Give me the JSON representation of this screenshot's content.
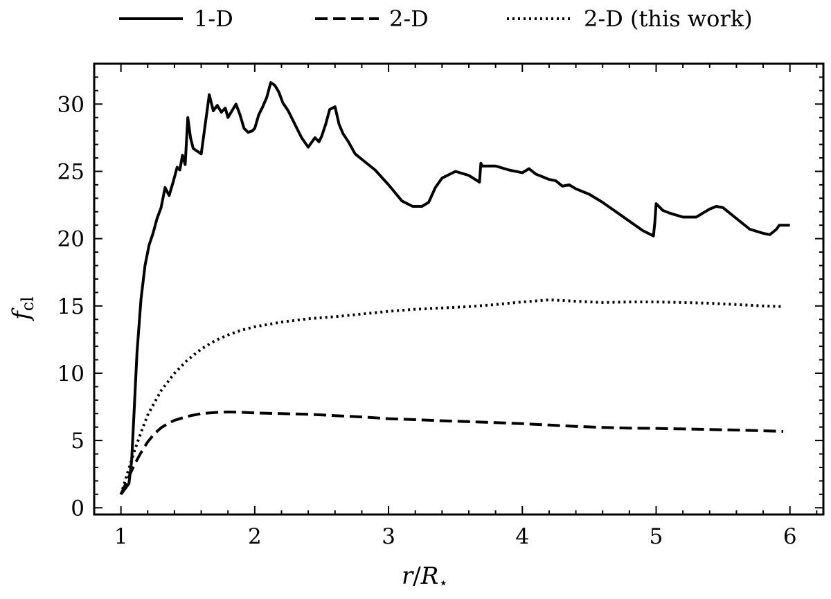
{
  "chart_data": {
    "type": "line",
    "xlabel": "r/R⋆",
    "ylabel": "f_cl",
    "xlim": [
      0.8,
      6.25
    ],
    "ylim": [
      -0.5,
      33
    ],
    "xticks": [
      1,
      2,
      3,
      4,
      5,
      6
    ],
    "yticks": [
      0,
      5,
      10,
      15,
      20,
      25,
      30
    ],
    "xtick_labels": [
      "1",
      "2",
      "3",
      "4",
      "5",
      "6"
    ],
    "ytick_labels": [
      "0",
      "5",
      "10",
      "15",
      "20",
      "25",
      "30"
    ],
    "grid": false,
    "legend_position": "top, outside plot",
    "series": [
      {
        "name": "1-D",
        "style": "solid",
        "x": [
          1.0,
          1.03,
          1.06,
          1.08,
          1.1,
          1.12,
          1.15,
          1.18,
          1.21,
          1.24,
          1.27,
          1.3,
          1.33,
          1.36,
          1.39,
          1.42,
          1.44,
          1.46,
          1.48,
          1.5,
          1.52,
          1.54,
          1.57,
          1.6,
          1.63,
          1.66,
          1.69,
          1.72,
          1.75,
          1.78,
          1.8,
          1.83,
          1.86,
          1.89,
          1.92,
          1.95,
          1.98,
          2.0,
          2.03,
          2.06,
          2.09,
          2.12,
          2.15,
          2.18,
          2.21,
          2.25,
          2.3,
          2.35,
          2.4,
          2.45,
          2.48,
          2.5,
          2.53,
          2.56,
          2.6,
          2.63,
          2.66,
          2.7,
          2.75,
          2.8,
          2.9,
          3.0,
          3.1,
          3.18,
          3.25,
          3.3,
          3.35,
          3.4,
          3.5,
          3.6,
          3.68,
          3.69,
          3.7,
          3.8,
          3.9,
          4.0,
          4.05,
          4.1,
          4.2,
          4.25,
          4.3,
          4.35,
          4.4,
          4.5,
          4.6,
          4.7,
          4.8,
          4.9,
          4.98,
          4.99,
          5.0,
          5.05,
          5.1,
          5.2,
          5.3,
          5.4,
          5.45,
          5.5,
          5.6,
          5.7,
          5.8,
          5.85,
          5.9,
          5.92,
          6.0
        ],
        "y": [
          1.0,
          1.4,
          1.8,
          3.5,
          7.5,
          11.5,
          15.5,
          18.0,
          19.5,
          20.4,
          21.5,
          22.3,
          23.8,
          23.2,
          24.2,
          25.3,
          25.1,
          26.2,
          25.5,
          29.0,
          27.5,
          26.7,
          26.5,
          26.3,
          28.5,
          30.7,
          29.5,
          29.9,
          29.4,
          29.7,
          29.0,
          29.5,
          30.0,
          29.2,
          28.2,
          27.9,
          28.0,
          28.2,
          29.2,
          29.8,
          30.5,
          31.6,
          31.4,
          30.9,
          30.1,
          29.5,
          28.5,
          27.5,
          26.8,
          27.5,
          27.2,
          27.6,
          28.5,
          29.6,
          29.8,
          28.5,
          27.8,
          27.2,
          26.3,
          25.9,
          25.1,
          24.0,
          22.8,
          22.4,
          22.4,
          22.7,
          23.8,
          24.5,
          25.0,
          24.7,
          24.2,
          25.6,
          25.4,
          25.4,
          25.1,
          24.9,
          25.2,
          24.8,
          24.4,
          24.3,
          23.9,
          24.0,
          23.7,
          23.3,
          22.7,
          22.0,
          21.3,
          20.6,
          20.2,
          21.2,
          22.6,
          22.1,
          21.9,
          21.6,
          21.6,
          22.2,
          22.4,
          22.3,
          21.5,
          20.7,
          20.4,
          20.3,
          20.7,
          21.0,
          21.0
        ]
      },
      {
        "name": "2-D",
        "style": "dashed",
        "x": [
          1.0,
          1.05,
          1.1,
          1.15,
          1.2,
          1.25,
          1.3,
          1.35,
          1.4,
          1.5,
          1.6,
          1.7,
          1.8,
          1.9,
          2.0,
          2.2,
          2.4,
          2.6,
          2.8,
          3.0,
          3.2,
          3.4,
          3.6,
          3.8,
          4.0,
          4.2,
          4.4,
          4.6,
          4.8,
          5.0,
          5.2,
          5.4,
          5.6,
          5.8,
          5.95
        ],
        "y": [
          1.0,
          2.1,
          3.2,
          4.1,
          4.9,
          5.5,
          5.95,
          6.25,
          6.5,
          6.8,
          7.0,
          7.08,
          7.12,
          7.1,
          7.05,
          7.0,
          6.95,
          6.85,
          6.75,
          6.62,
          6.55,
          6.47,
          6.4,
          6.33,
          6.25,
          6.15,
          6.05,
          5.97,
          5.92,
          5.9,
          5.86,
          5.82,
          5.78,
          5.72,
          5.68
        ]
      },
      {
        "name": "2-D (this work)",
        "style": "dotted",
        "x": [
          1.0,
          1.05,
          1.1,
          1.15,
          1.2,
          1.3,
          1.4,
          1.5,
          1.6,
          1.7,
          1.8,
          1.9,
          2.0,
          2.2,
          2.4,
          2.6,
          2.8,
          3.0,
          3.2,
          3.4,
          3.6,
          3.8,
          4.0,
          4.2,
          4.4,
          4.6,
          4.8,
          5.0,
          5.2,
          5.4,
          5.6,
          5.8,
          5.95
        ],
        "y": [
          1.0,
          2.6,
          4.2,
          5.6,
          6.9,
          8.7,
          10.0,
          11.0,
          11.8,
          12.4,
          12.85,
          13.2,
          13.45,
          13.8,
          14.05,
          14.2,
          14.4,
          14.6,
          14.75,
          14.85,
          14.95,
          15.1,
          15.3,
          15.45,
          15.35,
          15.25,
          15.3,
          15.3,
          15.25,
          15.2,
          15.1,
          15.0,
          14.95
        ]
      }
    ]
  }
}
